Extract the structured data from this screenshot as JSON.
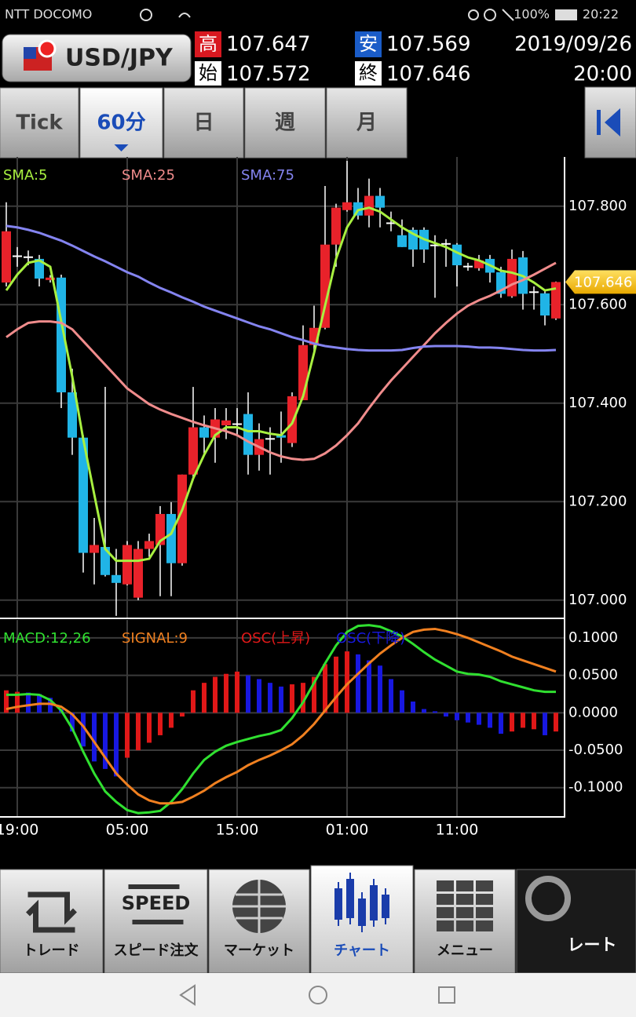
{
  "status_bar": {
    "carrier": "NTT DOCOMO",
    "battery": "100%",
    "time": "20:22"
  },
  "header": {
    "pair": "USD/JPY",
    "high_label": "高",
    "high": "107.647",
    "low_label": "安",
    "low": "107.569",
    "open_label": "始",
    "open": "107.572",
    "close_label": "終",
    "close": "107.646",
    "date": "2019/09/26",
    "time": "20:00"
  },
  "tabs": [
    "Tick",
    "60分",
    "日",
    "週",
    "月"
  ],
  "active_tab": 1,
  "chart_data": [
    {
      "type": "candlestick",
      "x": [
        null,
        "19:00",
        null,
        null,
        null,
        null,
        null,
        null,
        null,
        null,
        null,
        "05:00",
        null,
        null,
        null,
        null,
        null,
        null,
        null,
        null,
        null,
        "15:00",
        null,
        null,
        null,
        null,
        null,
        null,
        null,
        null,
        null,
        "01:00",
        null,
        null,
        null,
        null,
        null,
        null,
        null,
        null,
        null,
        "11:00",
        null,
        null,
        null,
        null,
        null,
        null,
        null,
        null,
        null
      ],
      "open": [
        107.645,
        107.7,
        107.697,
        107.693,
        107.65,
        107.655,
        107.422,
        107.33,
        107.096,
        107.108,
        107.051,
        107.032,
        107.005,
        107.104,
        107.112,
        107.175,
        107.075,
        107.255,
        107.351,
        107.33,
        107.355,
        107.359,
        107.378,
        107.295,
        107.327,
        107.335,
        107.319,
        107.406,
        107.518,
        107.553,
        107.722,
        107.792,
        107.808,
        107.781,
        107.821,
        107.765,
        107.741,
        107.752,
        107.752,
        107.722,
        107.722,
        107.722,
        107.677,
        107.674,
        107.693,
        107.666,
        107.617,
        107.696,
        107.625,
        107.623,
        107.572
      ],
      "high": [
        107.808,
        107.717,
        107.71,
        107.701,
        107.66,
        107.661,
        107.47,
        107.335,
        107.167,
        107.433,
        107.104,
        107.12,
        107.12,
        107.135,
        107.191,
        107.199,
        107.255,
        107.433,
        107.375,
        107.39,
        107.39,
        107.39,
        107.422,
        107.359,
        107.351,
        107.383,
        107.422,
        107.558,
        107.598,
        107.841,
        107.805,
        107.892,
        107.837,
        107.856,
        107.837,
        107.789,
        107.773,
        107.757,
        107.757,
        107.741,
        107.733,
        107.725,
        107.685,
        107.701,
        107.701,
        107.677,
        107.712,
        107.709,
        107.637,
        107.629,
        107.647
      ],
      "low": [
        107.637,
        107.677,
        107.68,
        107.637,
        107.645,
        107.39,
        107.295,
        107.056,
        107.032,
        107.048,
        106.968,
        107.03,
        107.0,
        107.088,
        107.008,
        107.008,
        107.07,
        107.247,
        107.295,
        107.279,
        107.327,
        107.335,
        107.255,
        107.263,
        107.255,
        107.279,
        107.311,
        107.406,
        107.502,
        107.55,
        107.677,
        107.789,
        107.773,
        107.757,
        107.757,
        107.749,
        107.717,
        107.677,
        107.685,
        107.614,
        107.677,
        107.637,
        107.669,
        107.669,
        107.645,
        107.614,
        107.614,
        107.59,
        107.59,
        107.558,
        107.569
      ],
      "close": [
        107.749,
        107.697,
        107.698,
        107.653,
        107.655,
        107.422,
        107.33,
        107.096,
        107.112,
        107.051,
        107.035,
        107.112,
        107.104,
        107.12,
        107.175,
        107.075,
        107.255,
        107.351,
        107.33,
        107.367,
        107.365,
        107.357,
        107.295,
        107.327,
        107.329,
        107.33,
        107.414,
        107.518,
        107.553,
        107.722,
        107.797,
        107.808,
        107.781,
        107.821,
        107.797,
        107.767,
        107.717,
        107.712,
        107.712,
        107.72,
        107.725,
        107.68,
        107.679,
        107.69,
        107.665,
        107.622,
        107.693,
        107.622,
        107.627,
        107.578,
        107.646
      ],
      "up_color": "#e8222a",
      "down_color": "#20b4e6",
      "series": [
        {
          "name": "SMA:5",
          "color": "#a8f040",
          "values": [
            107.629,
            107.661,
            107.685,
            107.69,
            107.677,
            107.566,
            107.454,
            107.327,
            107.215,
            107.104,
            107.08,
            107.08,
            107.08,
            107.084,
            107.12,
            107.135,
            107.183,
            107.247,
            107.295,
            107.335,
            107.351,
            107.351,
            107.343,
            107.343,
            107.338,
            107.335,
            107.359,
            107.414,
            107.502,
            107.598,
            107.693,
            107.757,
            107.792,
            107.797,
            107.789,
            107.773,
            107.757,
            107.744,
            107.733,
            107.725,
            107.717,
            107.706,
            107.696,
            107.69,
            107.68,
            107.669,
            107.665,
            107.658,
            107.645,
            107.629,
            107.633
          ]
        },
        {
          "name": "SMA:25",
          "color": "#f08c8c",
          "values": [
            107.534,
            107.55,
            107.563,
            107.566,
            107.566,
            107.563,
            107.55,
            107.526,
            107.502,
            107.478,
            107.454,
            107.43,
            107.414,
            107.398,
            107.387,
            107.378,
            107.37,
            107.362,
            107.355,
            107.349,
            107.343,
            107.335,
            107.322,
            107.311,
            107.3,
            107.292,
            107.287,
            107.285,
            107.287,
            107.298,
            107.314,
            107.335,
            107.359,
            107.39,
            107.419,
            107.446,
            107.47,
            107.494,
            107.518,
            107.542,
            107.563,
            107.582,
            107.598,
            107.609,
            107.618,
            107.629,
            107.641,
            107.65,
            107.661,
            107.673,
            107.685
          ]
        },
        {
          "name": "SMA:75",
          "color": "#8484f0",
          "values": [
            107.76,
            107.757,
            107.752,
            107.746,
            107.738,
            107.73,
            107.72,
            107.709,
            107.698,
            107.688,
            107.677,
            107.666,
            107.657,
            107.645,
            107.634,
            107.625,
            107.615,
            107.606,
            107.596,
            107.588,
            107.58,
            107.572,
            107.564,
            107.556,
            107.55,
            107.542,
            107.534,
            107.528,
            107.521,
            107.516,
            107.513,
            107.51,
            107.508,
            107.507,
            107.507,
            107.507,
            107.508,
            107.512,
            107.515,
            107.516,
            107.516,
            107.516,
            107.515,
            107.513,
            107.513,
            107.512,
            107.51,
            107.508,
            107.507,
            107.507,
            107.508
          ]
        }
      ],
      "ylim": [
        106.963,
        107.9
      ],
      "yticks": [
        {
          "value": 107,
          "label": "107.000"
        },
        {
          "value": 107.2,
          "label": "107.200"
        },
        {
          "value": 107.4,
          "label": "107.400"
        },
        {
          "value": 107.6,
          "label": "107.600"
        },
        {
          "value": 107.8,
          "label": "107.800"
        }
      ],
      "grid": true
    },
    {
      "type": "macd",
      "series": [
        {
          "name": "MACD:12,26",
          "color": "#30e030",
          "type": "line",
          "values": [
            0.024,
            0.024,
            0.025,
            0.024,
            0.017,
            0.003,
            -0.021,
            -0.052,
            -0.081,
            -0.105,
            -0.119,
            -0.13,
            -0.134,
            -0.133,
            -0.131,
            -0.119,
            -0.102,
            -0.081,
            -0.063,
            -0.052,
            -0.044,
            -0.039,
            -0.035,
            -0.031,
            -0.028,
            -0.023,
            -0.007,
            0.014,
            0.04,
            0.066,
            0.09,
            0.108,
            0.116,
            0.117,
            0.115,
            0.109,
            0.102,
            0.092,
            0.081,
            0.071,
            0.063,
            0.055,
            0.052,
            0.051,
            0.048,
            0.042,
            0.038,
            0.034,
            0.03,
            0.028,
            0.028
          ]
        },
        {
          "name": "SIGNAL:9",
          "color": "#f08020",
          "type": "line",
          "values": [
            0.005,
            0.008,
            0.01,
            0.012,
            0.012,
            0.008,
            -0.002,
            -0.018,
            -0.039,
            -0.06,
            -0.081,
            -0.096,
            -0.109,
            -0.117,
            -0.121,
            -0.121,
            -0.119,
            -0.112,
            -0.104,
            -0.094,
            -0.086,
            -0.079,
            -0.07,
            -0.063,
            -0.057,
            -0.05,
            -0.042,
            -0.03,
            -0.015,
            0.003,
            0.021,
            0.038,
            0.052,
            0.066,
            0.079,
            0.09,
            0.1,
            0.108,
            0.111,
            0.112,
            0.109,
            0.105,
            0.1,
            0.094,
            0.088,
            0.082,
            0.075,
            0.07,
            0.065,
            0.06,
            0.055
          ]
        },
        {
          "name": "OSC(上昇)",
          "color": "#e01818",
          "type": "bar",
          "values": [
            0.03,
            0.028,
            null,
            null,
            null,
            null,
            null,
            null,
            null,
            null,
            null,
            -0.06,
            -0.05,
            -0.04,
            -0.03,
            -0.02,
            -0.005,
            0.03,
            0.04,
            0.048,
            0.052,
            0.055,
            null,
            null,
            null,
            null,
            0.038,
            0.04,
            0.048,
            0.065,
            0.075,
            0.082,
            null,
            null,
            null,
            null,
            null,
            null,
            null,
            null,
            null,
            null,
            null,
            null,
            null,
            null,
            -0.025,
            -0.02,
            -0.022,
            null,
            -0.025
          ]
        },
        {
          "name": "OSC(下降)",
          "color": "#1818e0",
          "type": "bar",
          "values": [
            null,
            null,
            0.027,
            0.025,
            0.02,
            0.005,
            -0.025,
            -0.045,
            -0.065,
            -0.075,
            -0.085,
            null,
            null,
            null,
            null,
            null,
            null,
            null,
            null,
            null,
            null,
            null,
            0.05,
            0.045,
            0.04,
            0.035,
            null,
            null,
            null,
            null,
            null,
            null,
            0.078,
            0.07,
            0.063,
            0.045,
            0.03,
            0.015,
            0.005,
            0.002,
            -0.005,
            -0.01,
            -0.013,
            -0.016,
            -0.02,
            -0.028,
            null,
            null,
            null,
            -0.03,
            null
          ]
        }
      ],
      "ylim": [
        -0.138,
        0.124
      ],
      "yticks": [
        {
          "value": -0.1,
          "label": "-0.1000"
        },
        {
          "value": -0.05,
          "label": "-0.0500"
        },
        {
          "value": 0,
          "label": "0.0000"
        },
        {
          "value": 0.05,
          "label": "0.0500"
        },
        {
          "value": 0.1,
          "label": "0.1000"
        }
      ],
      "grid": true
    }
  ],
  "bottom_nav": {
    "items": [
      "トレード",
      "スピード注文",
      "マーケット",
      "チャート",
      "メニュー",
      "レート"
    ],
    "active": 3,
    "speed_icon": "SPEED"
  }
}
